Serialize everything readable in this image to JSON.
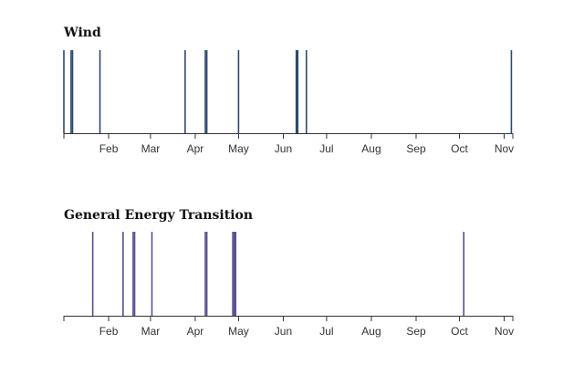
{
  "chart_data": [
    {
      "type": "timeline",
      "title": "Wind",
      "color": "#2c4a6e",
      "xlim": [
        "2020-01-01",
        "2020-11-07"
      ],
      "xticks": [
        "Feb",
        "Mar",
        "Apr",
        "May",
        "Jun",
        "Jul",
        "Aug",
        "Sep",
        "Oct",
        "Nov"
      ],
      "events": [
        "2020-01-01",
        "2020-01-06",
        "2020-01-07",
        "2020-01-26",
        "2020-03-25",
        "2020-04-08",
        "2020-04-09",
        "2020-05-01",
        "2020-06-10",
        "2020-06-11",
        "2020-06-17",
        "2020-11-06"
      ]
    },
    {
      "type": "timeline",
      "title": "General Energy Transition",
      "color": "#5b4e8f",
      "xlim": [
        "2020-01-01",
        "2020-11-07"
      ],
      "xticks": [
        "Feb",
        "Mar",
        "Apr",
        "May",
        "Jun",
        "Jul",
        "Aug",
        "Sep",
        "Oct",
        "Nov"
      ],
      "events": [
        "2020-01-21",
        "2020-02-11",
        "2020-02-18",
        "2020-02-19",
        "2020-03-02",
        "2020-04-08",
        "2020-04-09",
        "2020-04-27",
        "2020-04-28",
        "2020-04-29",
        "2020-10-04"
      ]
    }
  ]
}
